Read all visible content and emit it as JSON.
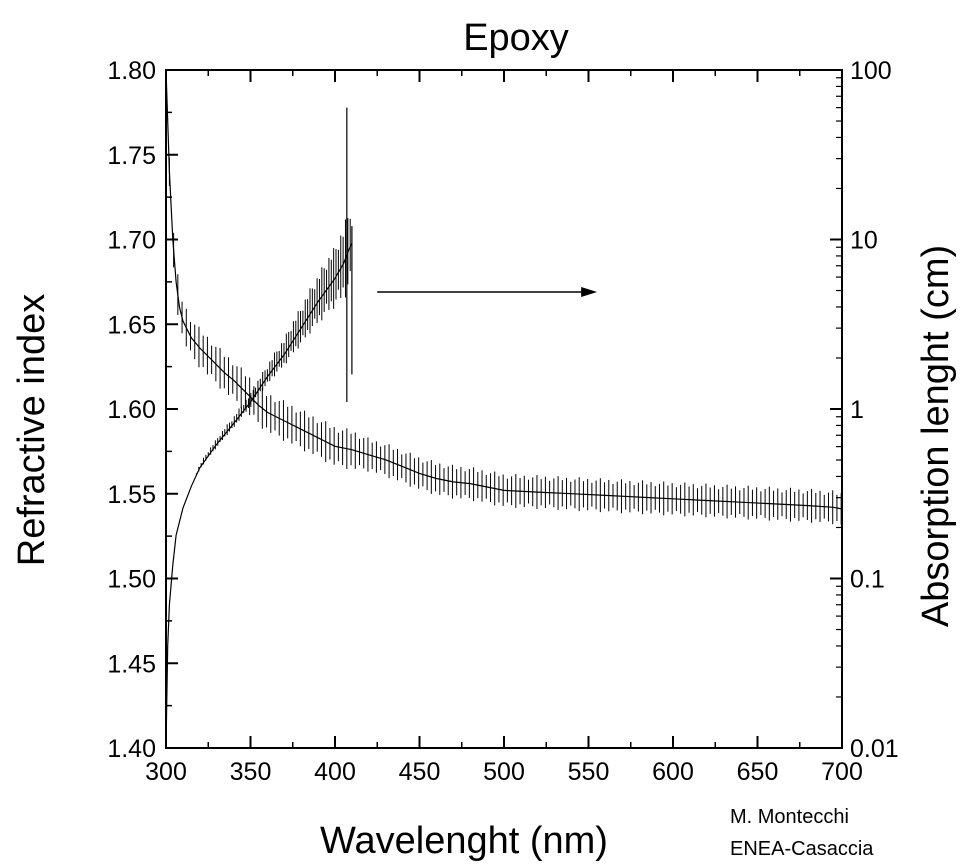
{
  "chart_data": {
    "type": "line",
    "title": "Epoxy",
    "xlabel": "Wavelenght (nm)",
    "ylabel": "Refractive index",
    "y2label": "Absorption lenght (cm)",
    "xlim": [
      300,
      700
    ],
    "ylim": [
      1.4,
      1.8
    ],
    "y2lim": [
      0.01,
      100
    ],
    "y2scale": "log",
    "x_ticks": [
      "300",
      "350",
      "400",
      "450",
      "500",
      "550",
      "600",
      "650",
      "700"
    ],
    "y_ticks": [
      "1.40",
      "1.45",
      "1.50",
      "1.55",
      "1.60",
      "1.65",
      "1.70",
      "1.75",
      "1.80"
    ],
    "y2_ticks": [
      "0.01",
      "0.1",
      "1",
      "10",
      "100"
    ],
    "grid": false,
    "annotations": [
      {
        "type": "arrow",
        "text": "",
        "from": [
          425,
          1.669
        ],
        "to": [
          548,
          1.669
        ],
        "meaning": "points to right axis"
      }
    ],
    "series": [
      {
        "axis": "left",
        "with_error_bars": true,
        "x": [
          300,
          302,
          304,
          306,
          308,
          310,
          315,
          320,
          325,
          330,
          335,
          340,
          345,
          350,
          355,
          360,
          370,
          380,
          390,
          400,
          410,
          420,
          430,
          440,
          450,
          460,
          470,
          480,
          490,
          500,
          520,
          540,
          560,
          580,
          600,
          620,
          640,
          660,
          680,
          695,
          700
        ],
        "y": [
          1.8,
          1.74,
          1.7,
          1.675,
          1.66,
          1.652,
          1.642,
          1.636,
          1.631,
          1.626,
          1.621,
          1.617,
          1.612,
          1.607,
          1.602,
          1.598,
          1.593,
          1.588,
          1.583,
          1.578,
          1.576,
          1.573,
          1.57,
          1.566,
          1.562,
          1.559,
          1.557,
          1.556,
          1.554,
          1.552,
          1.551,
          1.55,
          1.549,
          1.548,
          1.547,
          1.546,
          1.545,
          1.544,
          1.543,
          1.542,
          1.541
        ],
        "err": [
          0.0,
          0.012,
          0.012,
          0.012,
          0.012,
          0.012,
          0.012,
          0.012,
          0.012,
          0.012,
          0.012,
          0.012,
          0.012,
          0.012,
          0.012,
          0.012,
          0.012,
          0.012,
          0.012,
          0.012,
          0.012,
          0.01,
          0.01,
          0.01,
          0.01,
          0.01,
          0.01,
          0.01,
          0.01,
          0.01,
          0.01,
          0.01,
          0.01,
          0.01,
          0.01,
          0.01,
          0.01,
          0.01,
          0.01,
          0.01,
          0.01
        ]
      },
      {
        "axis": "right",
        "with_error_bars": true,
        "x": [
          300,
          301,
          302,
          304,
          306,
          310,
          315,
          320,
          330,
          340,
          350,
          360,
          370,
          380,
          390,
          400,
          405,
          408,
          410
        ],
        "y": [
          0.01,
          0.04,
          0.07,
          0.12,
          0.18,
          0.26,
          0.35,
          0.45,
          0.62,
          0.82,
          1.1,
          1.55,
          2.1,
          3.0,
          4.3,
          5.9,
          7.2,
          8.6,
          9.5
        ],
        "err_frac": [
          0.0,
          0.0,
          0.0,
          0.0,
          0.0,
          0.0,
          0.0,
          0.05,
          0.08,
          0.1,
          0.12,
          0.18,
          0.25,
          0.35,
          0.45,
          0.55,
          0.65,
          0.75,
          0.8
        ]
      }
    ]
  },
  "credit": {
    "line1": "M. Montecchi",
    "line2": "ENEA-Casaccia"
  }
}
